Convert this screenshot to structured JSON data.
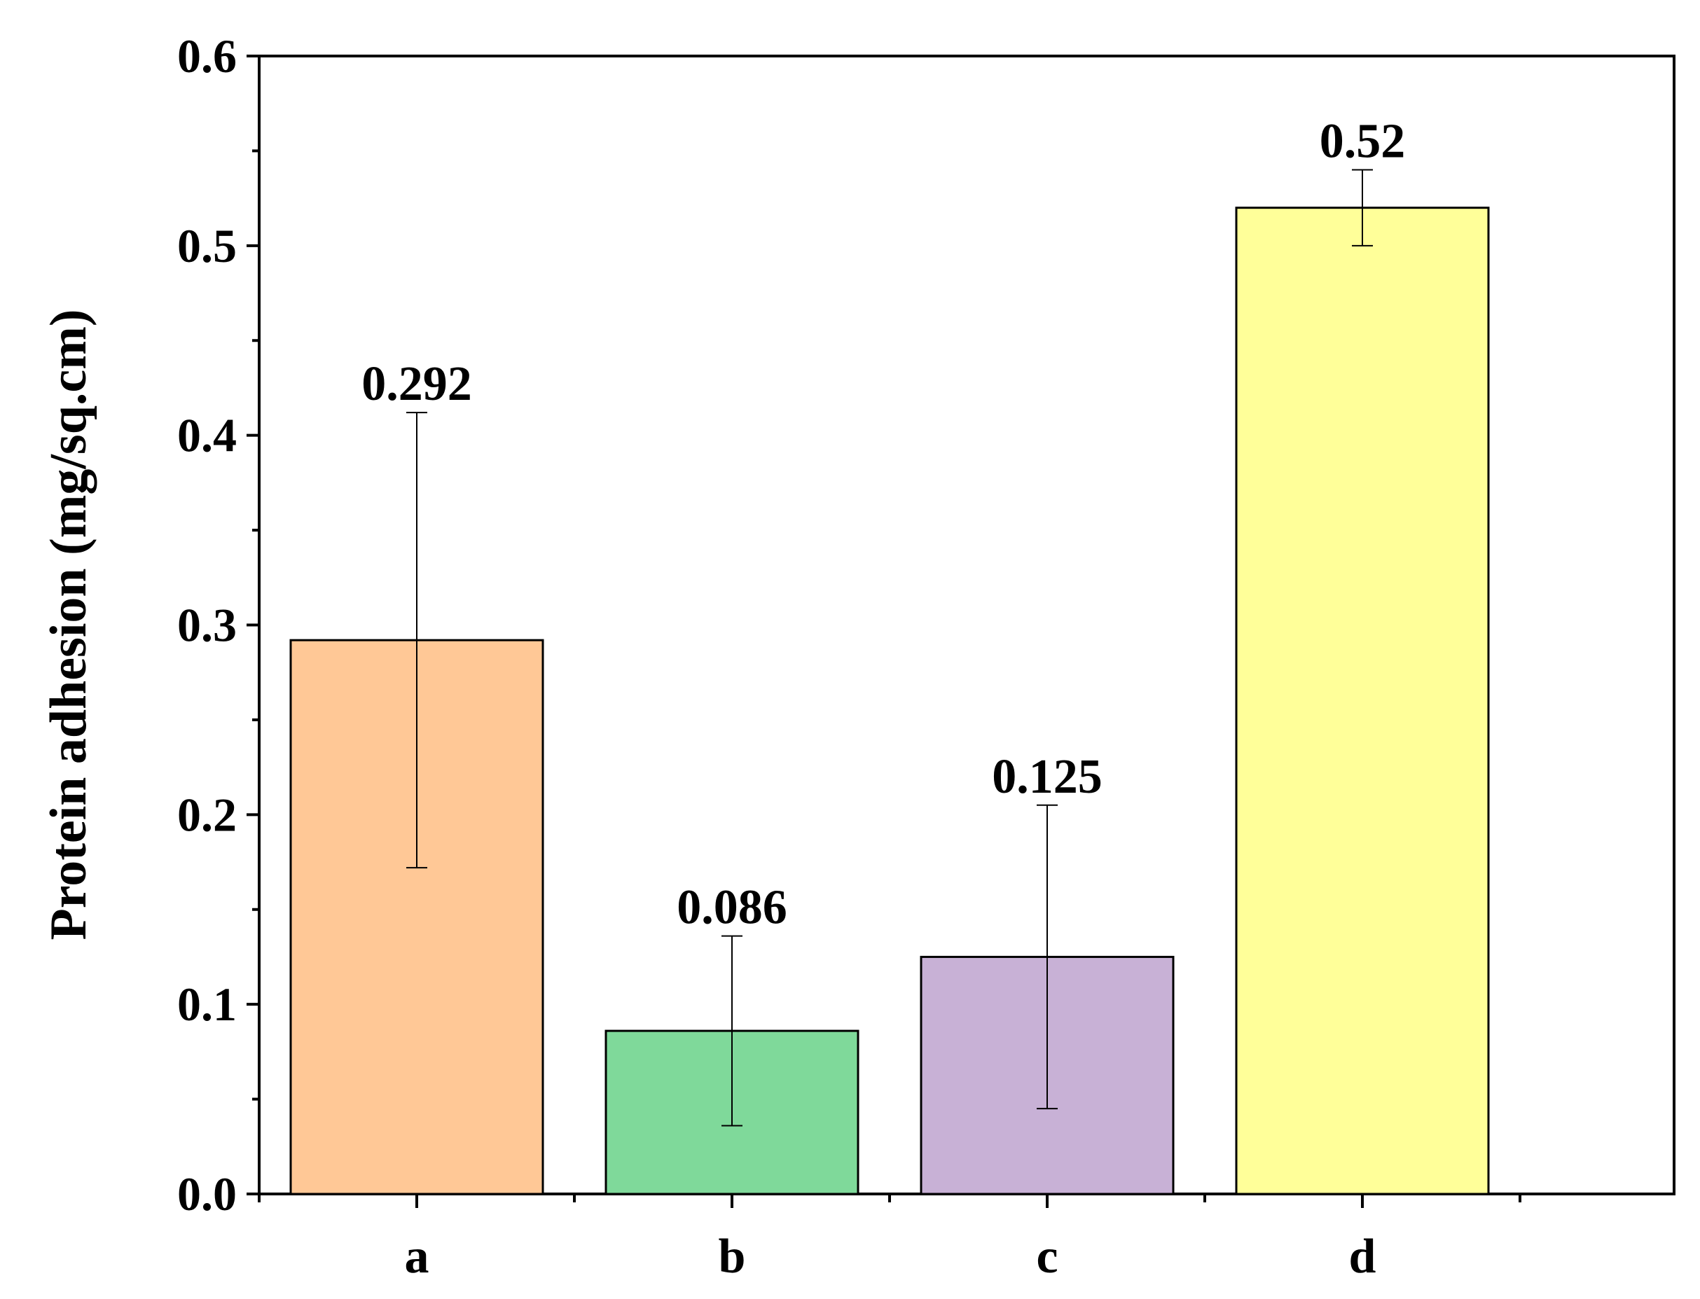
{
  "chart_data": {
    "type": "bar",
    "title": "",
    "xlabel": "",
    "ylabel": "Protein adhesion (mg/sq.cm)",
    "ylim": [
      0,
      0.6
    ],
    "yticks": [
      "0.0",
      "0.1",
      "0.2",
      "0.3",
      "0.4",
      "0.5",
      "0.6"
    ],
    "grid": false,
    "categories": [
      "a",
      "b",
      "c",
      "d"
    ],
    "values": [
      0.292,
      0.086,
      0.125,
      0.52
    ],
    "value_labels": [
      "0.292",
      "0.086",
      "0.125",
      "0.52"
    ],
    "errors": [
      0.12,
      0.05,
      0.08,
      0.02
    ],
    "colors": [
      "#FFC896",
      "#7FD99A",
      "#C8B1D6",
      "#FFFF99"
    ]
  }
}
